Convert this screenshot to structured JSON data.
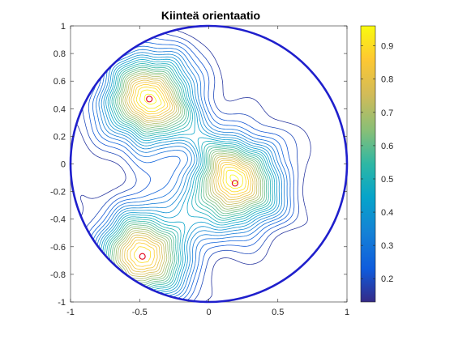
{
  "chart_data": {
    "type": "contour",
    "title": "Kiinteä orientaatio",
    "xlabel": "",
    "ylabel": "",
    "xlim": [
      -1,
      1
    ],
    "ylim": [
      -1,
      1
    ],
    "x_ticks": [
      -1,
      -0.5,
      0,
      0.5,
      1
    ],
    "x_tick_labels": [
      "-1",
      "-0.5",
      "0",
      "0.5",
      "1"
    ],
    "y_ticks": [
      1,
      0.8,
      0.6,
      0.4,
      0.2,
      0,
      -0.2,
      -0.4,
      -0.6,
      -0.8,
      -1
    ],
    "y_tick_labels": [
      "1",
      "0.8",
      "0.6",
      "0.4",
      "0.2",
      "0",
      "-0.2",
      "-0.4",
      "-0.6",
      "-0.8",
      "-1"
    ],
    "boundary": {
      "shape": "circle",
      "center": [
        0,
        0
      ],
      "radius": 1,
      "color": "#1f1fcc"
    },
    "peaks": [
      {
        "x": -0.43,
        "y": 0.47,
        "value": 0.95
      },
      {
        "x": 0.19,
        "y": -0.14,
        "value": 0.92
      },
      {
        "x": -0.48,
        "y": -0.67,
        "value": 0.93
      }
    ],
    "peak_marker_color": "#e0001a",
    "colorbar": {
      "colormap": "parula",
      "range": [
        0.13,
        0.96
      ],
      "ticks": [
        0.2,
        0.3,
        0.4,
        0.5,
        0.6,
        0.7,
        0.8,
        0.9
      ],
      "tick_labels": [
        "0.2",
        "0.3",
        "0.4",
        "0.5",
        "0.6",
        "0.7",
        "0.8",
        "0.9"
      ]
    },
    "grid": false,
    "legend": "none"
  }
}
